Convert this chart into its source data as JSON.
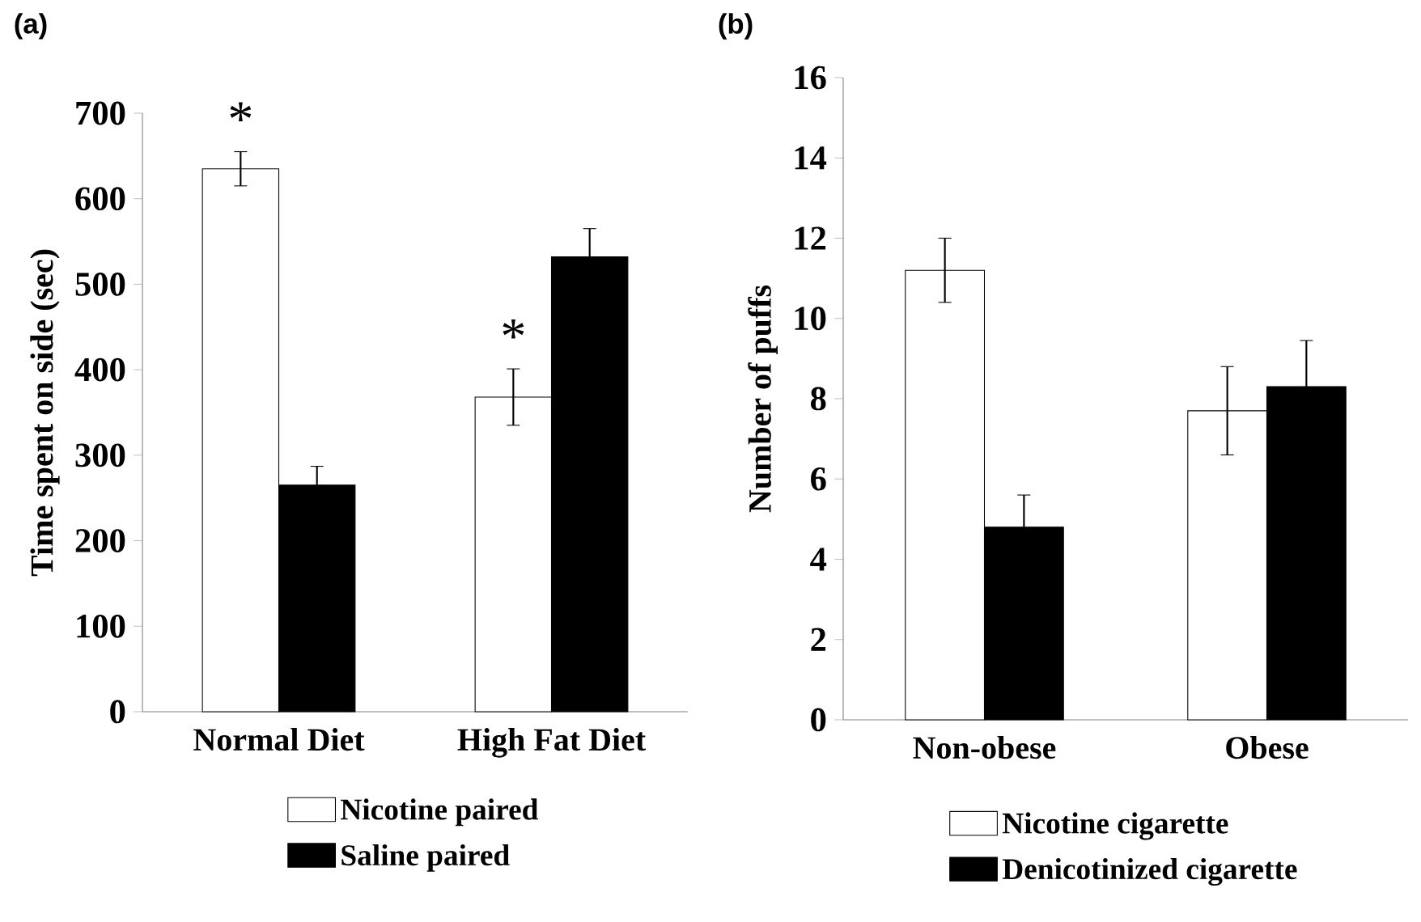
{
  "chart_data": [
    {
      "type": "bar",
      "title": "(a)",
      "ylabel": "Time spent on side (sec)",
      "categories": [
        "Normal Diet",
        "High Fat Diet"
      ],
      "series": [
        {
          "name": "Nicotine paired",
          "color": "#ffffff",
          "values": [
            635,
            368
          ],
          "errors": [
            20,
            33
          ]
        },
        {
          "name": "Saline paired",
          "color": "#000000",
          "values": [
            265,
            532
          ],
          "errors": [
            22,
            33
          ]
        }
      ],
      "ylim": [
        0,
        700
      ],
      "yticks": [
        0,
        100,
        200,
        300,
        400,
        500,
        600,
        700
      ],
      "legend": "bottom",
      "annotations": [
        "*",
        "*"
      ]
    },
    {
      "type": "bar",
      "title": "(b)",
      "ylabel": "Number of puffs",
      "categories": [
        "Non-obese",
        "Obese"
      ],
      "series": [
        {
          "name": "Nicotine cigarette",
          "color": "#ffffff",
          "values": [
            11.2,
            7.7
          ],
          "errors": [
            0.8,
            1.1
          ]
        },
        {
          "name": "Denicotinized cigarette",
          "color": "#000000",
          "values": [
            4.8,
            8.3
          ],
          "errors": [
            0.8,
            1.15
          ]
        }
      ],
      "ylim": [
        0,
        16
      ],
      "yticks": [
        0,
        2,
        4,
        6,
        8,
        10,
        12,
        14,
        16
      ],
      "legend": "bottom"
    }
  ]
}
